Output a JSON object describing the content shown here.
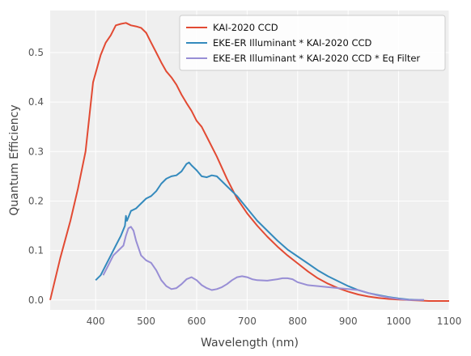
{
  "chart_data": {
    "type": "line",
    "xlabel": "Wavelength (nm)",
    "ylabel": "Quantum Efficiency",
    "xlim": [
      310,
      1100
    ],
    "ylim": [
      -0.02,
      0.585
    ],
    "xticks": [
      400,
      500,
      600,
      700,
      800,
      900,
      1000,
      1100
    ],
    "yticks": [
      0.0,
      0.1,
      0.2,
      0.3,
      0.4,
      0.5
    ],
    "ytick_labels": [
      "0.0",
      "0.1",
      "0.2",
      "0.3",
      "0.4",
      "0.5"
    ],
    "grid": true,
    "legend_position": "top-right",
    "series": [
      {
        "name": "KAI-2020 CCD",
        "color": "#e24a33",
        "x": [
          310,
          330,
          350,
          365,
          380,
          395,
          410,
          420,
          430,
          440,
          450,
          460,
          470,
          480,
          490,
          500,
          510,
          520,
          530,
          540,
          550,
          560,
          570,
          580,
          590,
          600,
          610,
          620,
          640,
          660,
          680,
          700,
          720,
          740,
          760,
          780,
          800,
          820,
          840,
          860,
          880,
          900,
          920,
          940,
          960,
          980,
          1000,
          1020,
          1040,
          1060,
          1080,
          1100
        ],
        "y": [
          0.0,
          0.085,
          0.16,
          0.225,
          0.3,
          0.44,
          0.495,
          0.52,
          0.535,
          0.555,
          0.558,
          0.56,
          0.555,
          0.553,
          0.55,
          0.54,
          0.52,
          0.5,
          0.48,
          0.462,
          0.45,
          0.435,
          0.415,
          0.398,
          0.382,
          0.362,
          0.35,
          0.33,
          0.29,
          0.245,
          0.205,
          0.175,
          0.15,
          0.128,
          0.108,
          0.09,
          0.074,
          0.058,
          0.044,
          0.033,
          0.024,
          0.017,
          0.011,
          0.007,
          0.004,
          0.002,
          0.001,
          0.0,
          -0.001,
          -0.002,
          -0.002,
          -0.002
        ]
      },
      {
        "name": "EKE-ER Illuminant * KAI-2020 CCD",
        "color": "#348abd",
        "x": [
          400,
          410,
          420,
          430,
          440,
          450,
          458,
          460,
          462,
          470,
          480,
          490,
          500,
          510,
          520,
          530,
          540,
          550,
          560,
          570,
          580,
          585,
          590,
          600,
          610,
          620,
          630,
          640,
          650,
          660,
          680,
          700,
          720,
          740,
          760,
          780,
          800,
          820,
          840,
          860,
          880,
          900,
          920,
          940,
          960,
          980,
          1000,
          1020,
          1040,
          1050
        ],
        "y": [
          0.04,
          0.05,
          0.07,
          0.09,
          0.11,
          0.13,
          0.15,
          0.17,
          0.16,
          0.18,
          0.185,
          0.195,
          0.205,
          0.21,
          0.22,
          0.235,
          0.245,
          0.25,
          0.252,
          0.26,
          0.275,
          0.278,
          0.272,
          0.262,
          0.25,
          0.248,
          0.252,
          0.25,
          0.24,
          0.23,
          0.21,
          0.185,
          0.16,
          0.14,
          0.12,
          0.102,
          0.088,
          0.074,
          0.06,
          0.048,
          0.038,
          0.028,
          0.02,
          0.014,
          0.01,
          0.006,
          0.003,
          0.001,
          0.0,
          0.0
        ]
      },
      {
        "name": "EKE-ER Illuminant * KAI-2020 CCD * Eq Filter",
        "color": "#988ed5",
        "x": [
          415,
          425,
          435,
          445,
          455,
          460,
          465,
          470,
          475,
          480,
          490,
          500,
          510,
          520,
          530,
          540,
          550,
          560,
          570,
          580,
          590,
          600,
          610,
          620,
          630,
          640,
          650,
          660,
          670,
          680,
          690,
          700,
          710,
          720,
          740,
          760,
          770,
          780,
          790,
          800,
          820,
          840,
          860,
          880,
          900,
          920,
          940,
          960,
          980,
          1000,
          1020,
          1040,
          1050
        ],
        "y": [
          0.05,
          0.07,
          0.09,
          0.1,
          0.11,
          0.13,
          0.145,
          0.148,
          0.14,
          0.12,
          0.09,
          0.08,
          0.075,
          0.06,
          0.04,
          0.028,
          0.022,
          0.024,
          0.032,
          0.042,
          0.046,
          0.04,
          0.03,
          0.024,
          0.02,
          0.022,
          0.026,
          0.032,
          0.04,
          0.046,
          0.048,
          0.046,
          0.042,
          0.04,
          0.039,
          0.042,
          0.044,
          0.044,
          0.042,
          0.036,
          0.03,
          0.028,
          0.026,
          0.024,
          0.022,
          0.02,
          0.014,
          0.009,
          0.005,
          0.002,
          0.0,
          0.0,
          0.0
        ]
      }
    ]
  }
}
